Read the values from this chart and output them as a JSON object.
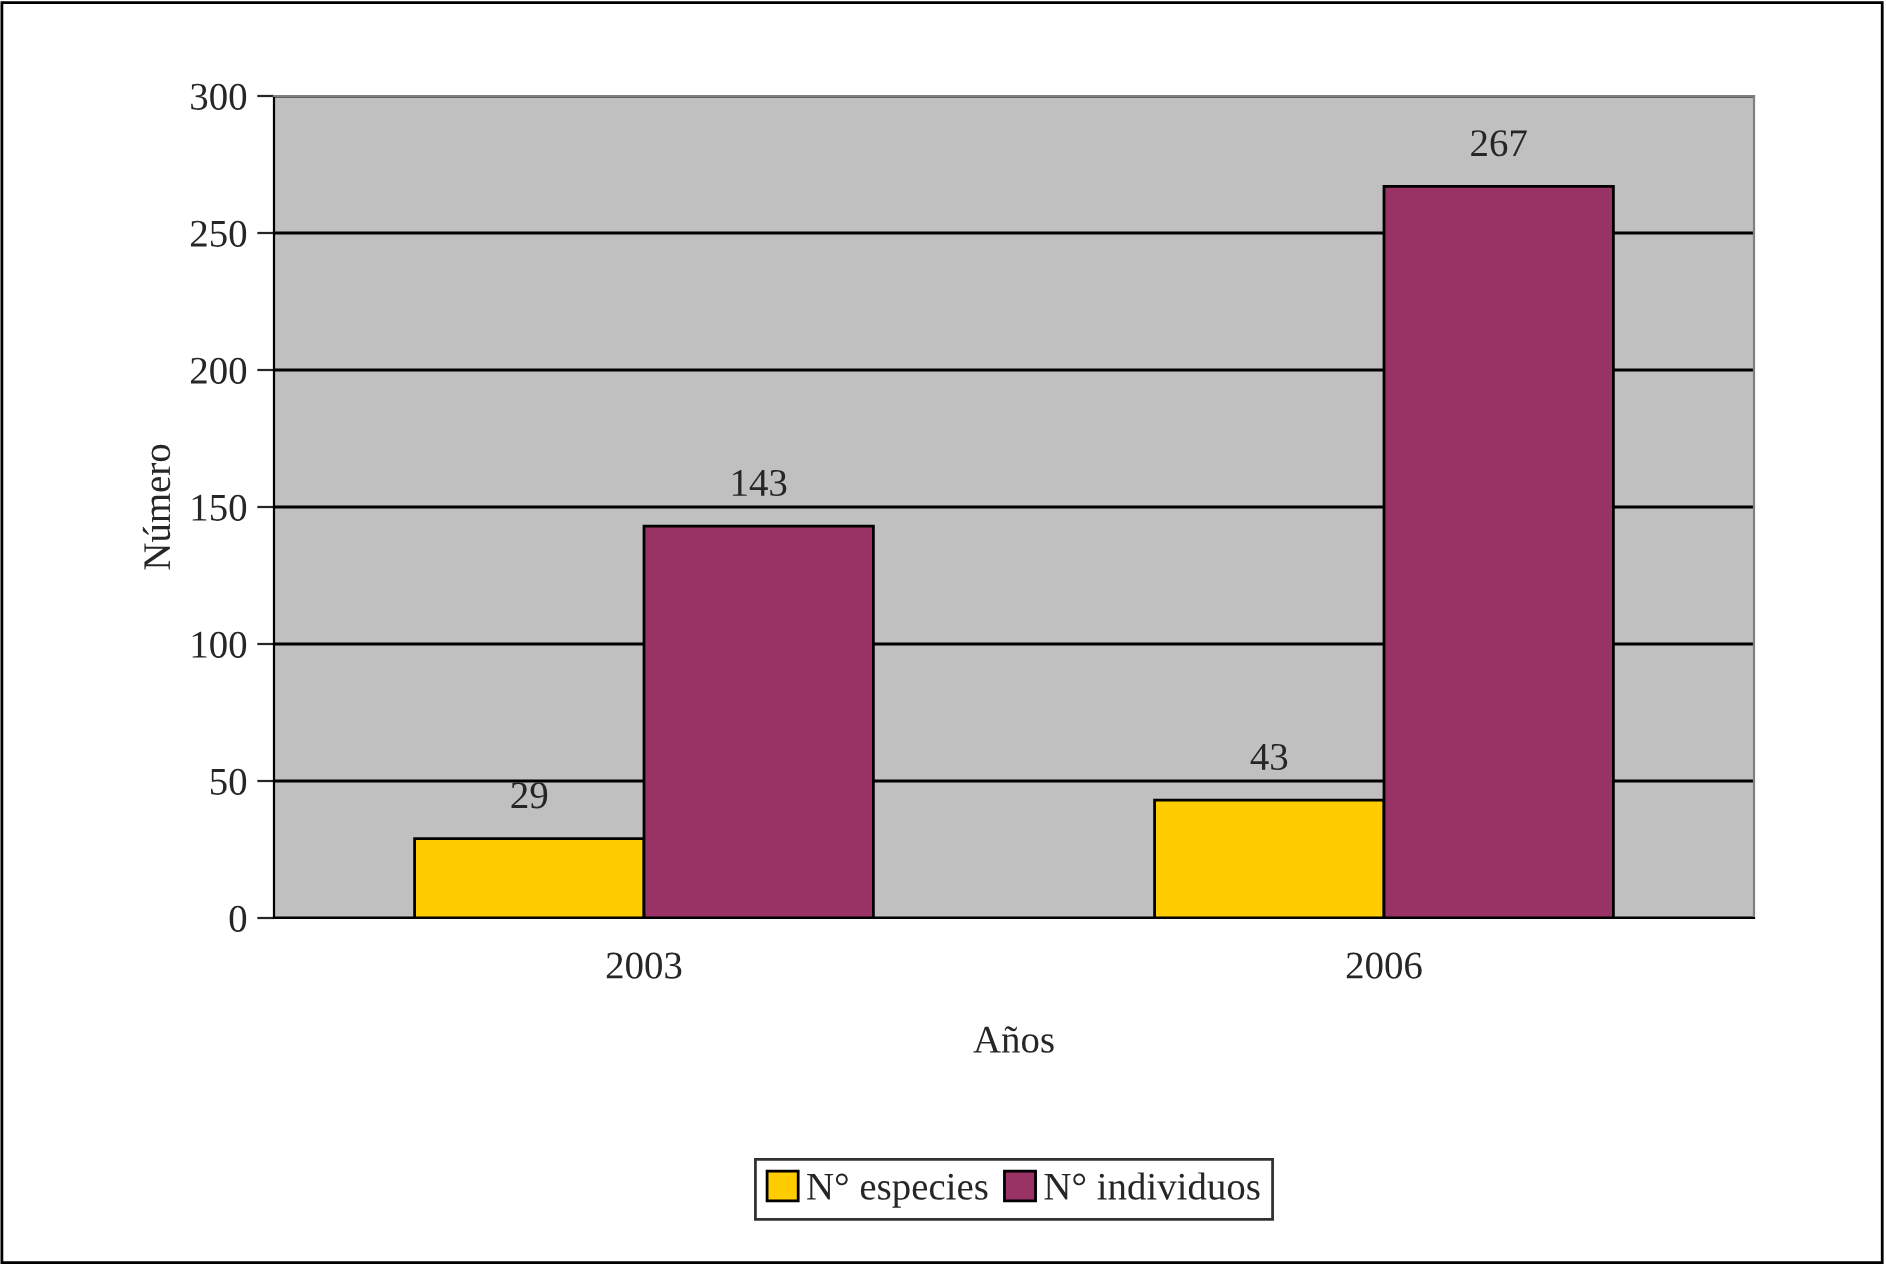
{
  "chart_data": {
    "type": "bar",
    "xlabel": "Años",
    "ylabel": "Número",
    "categories": [
      "2003",
      "2006"
    ],
    "series": [
      {
        "name": "N° especies",
        "color": "#ffcc00",
        "values": [
          29,
          43
        ]
      },
      {
        "name": "N° individuos",
        "color": "#993366",
        "values": [
          143,
          267
        ]
      }
    ],
    "ylim": [
      0,
      300
    ],
    "yticks": [
      0,
      50,
      100,
      150,
      200,
      250,
      300
    ],
    "grid": "y",
    "legend": "bottom",
    "data_labels": true
  }
}
